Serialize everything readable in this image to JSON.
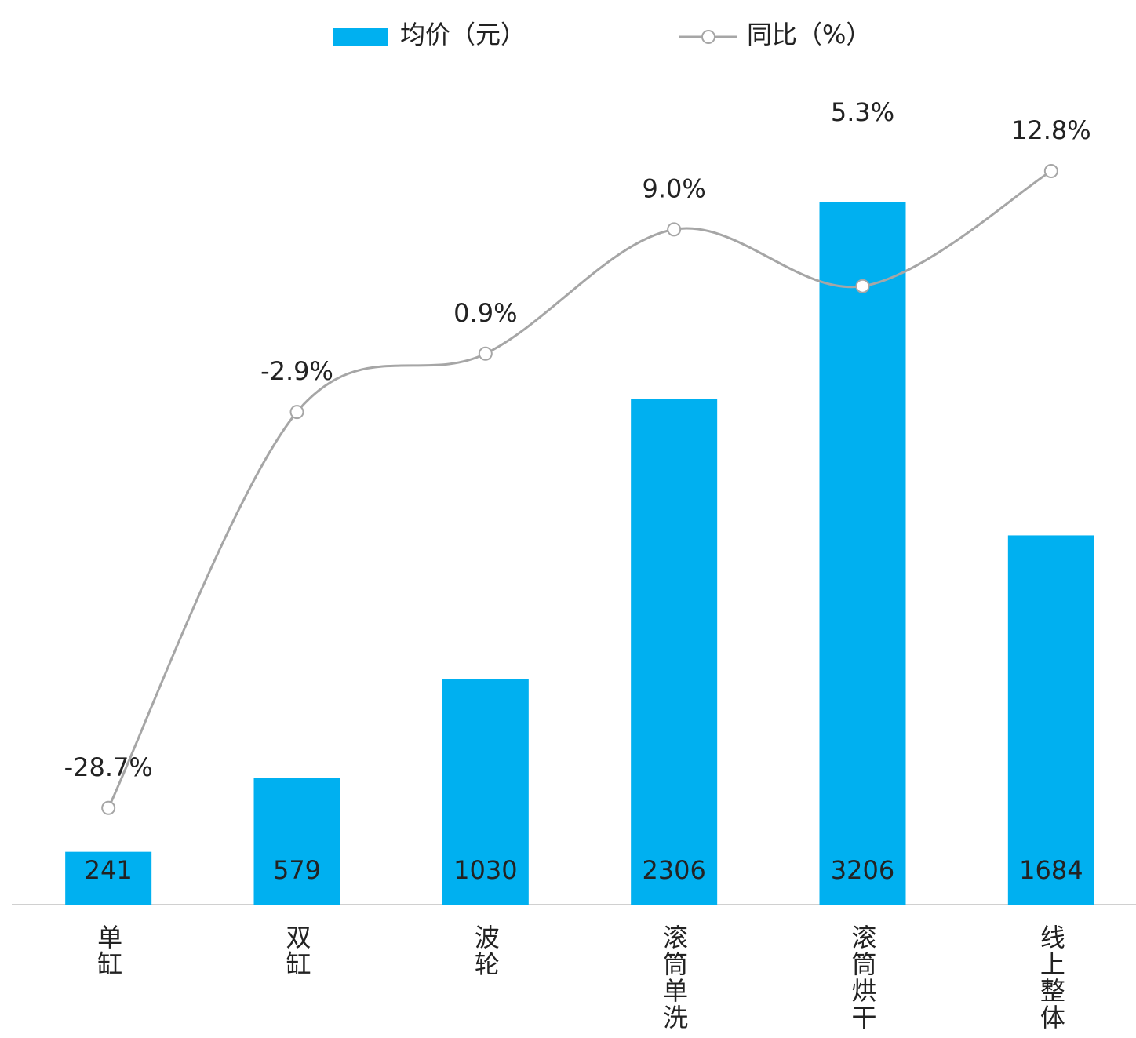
{
  "chart_data": {
    "type": "bar",
    "categories": [
      "单缸",
      "双缸",
      "波轮",
      "滚筒单洗",
      "滚筒烘干",
      "线上整体"
    ],
    "series": [
      {
        "name": "均价（元）",
        "type": "bar",
        "color": "#00b0f0",
        "values": [
          241,
          579,
          1030,
          2306,
          3206,
          1684
        ]
      },
      {
        "name": "同比（%）",
        "type": "line",
        "axis": "y2",
        "color": "#a6a6a6",
        "values": [
          -28.7,
          -2.9,
          0.9,
          9.0,
          5.3,
          12.8
        ],
        "value_labels": [
          "-28.7%",
          "-2.9%",
          "0.9%",
          "9.0%",
          "5.3%",
          "12.8%"
        ]
      }
    ],
    "ylim": [
      0,
      3500
    ],
    "y2lim": [
      -35,
      15
    ]
  }
}
